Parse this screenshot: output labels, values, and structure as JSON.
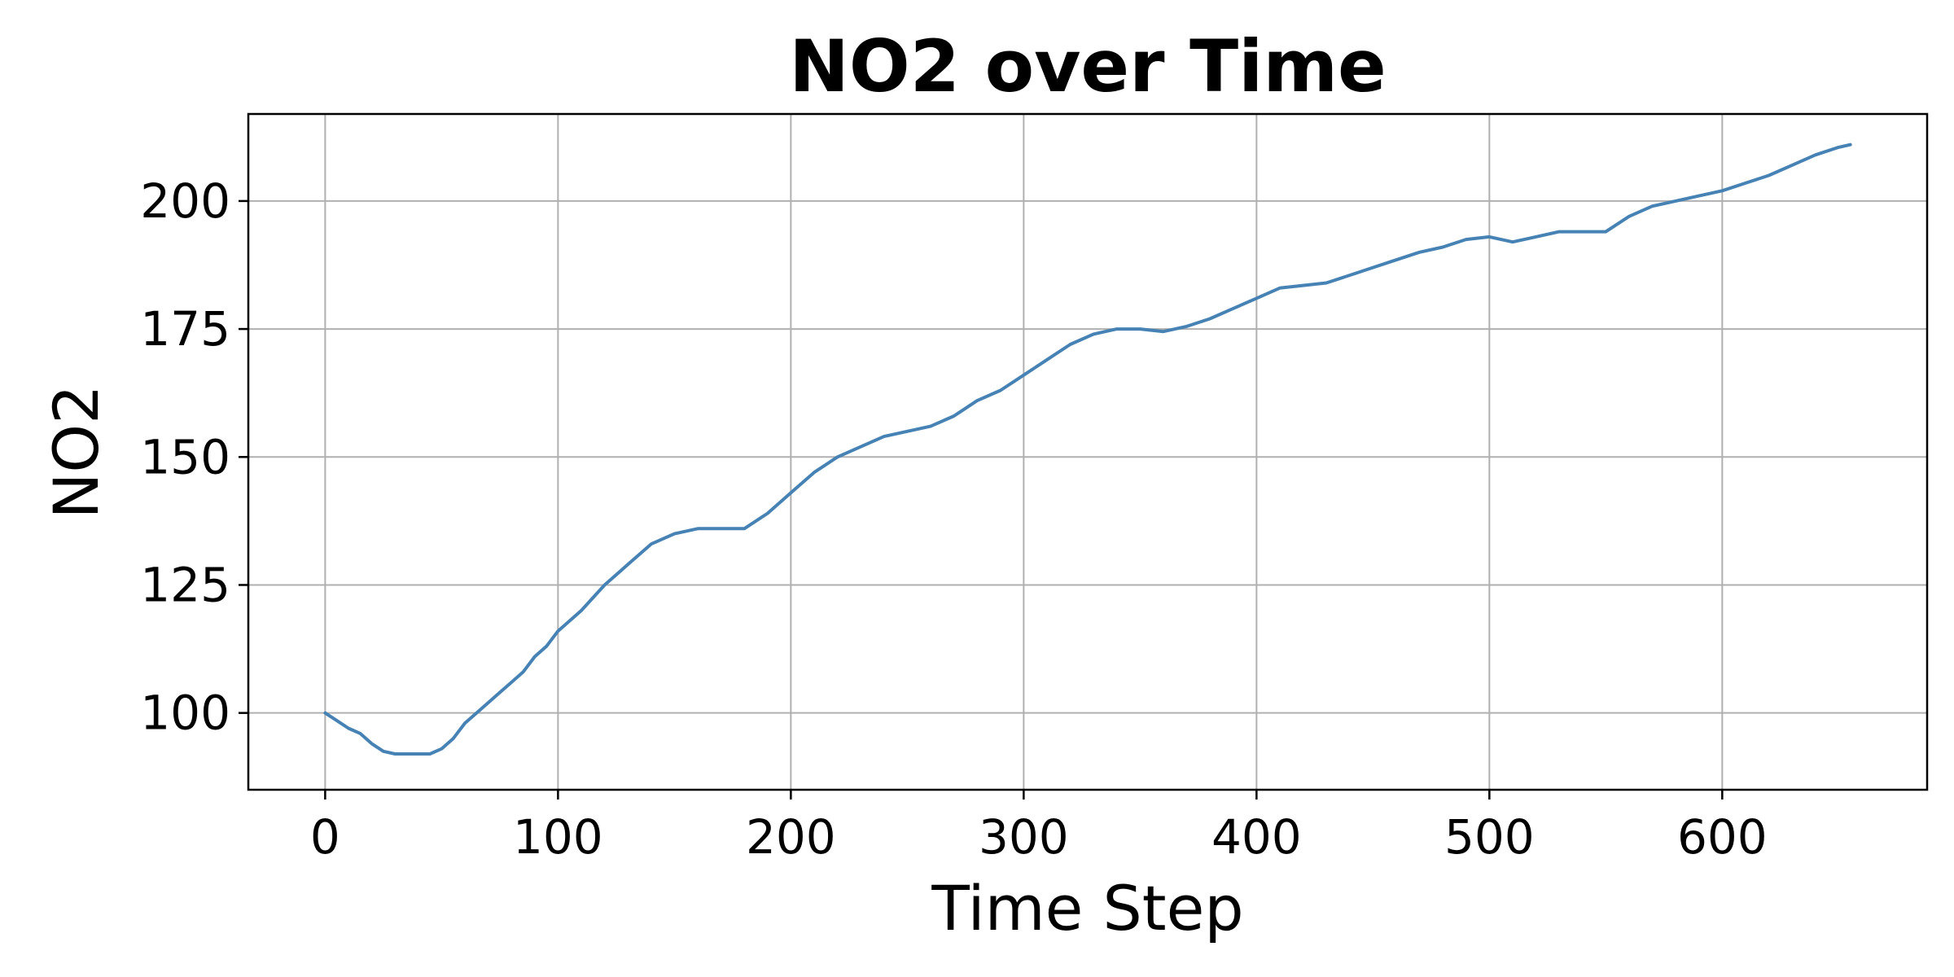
{
  "chart_data": {
    "type": "line",
    "title": "NO2 over Time",
    "xlabel": "Time Step",
    "ylabel": "NO2",
    "xlim": [
      -33,
      688
    ],
    "ylim": [
      85,
      217
    ],
    "xticks": [
      0,
      100,
      200,
      300,
      400,
      500,
      600
    ],
    "yticks": [
      100,
      125,
      150,
      175,
      200
    ],
    "grid": true,
    "series": [
      {
        "color": "#4682b4",
        "x": [
          0,
          5,
          10,
          15,
          20,
          25,
          30,
          35,
          40,
          45,
          50,
          55,
          60,
          65,
          70,
          75,
          80,
          85,
          90,
          95,
          100,
          110,
          120,
          130,
          140,
          150,
          160,
          170,
          180,
          190,
          200,
          210,
          220,
          230,
          240,
          250,
          260,
          270,
          280,
          290,
          300,
          310,
          320,
          330,
          340,
          350,
          360,
          370,
          380,
          390,
          400,
          410,
          420,
          430,
          440,
          450,
          460,
          470,
          480,
          490,
          500,
          510,
          520,
          530,
          540,
          550,
          560,
          570,
          580,
          590,
          600,
          610,
          620,
          630,
          640,
          650,
          655
        ],
        "y": [
          100,
          98.5,
          97,
          96,
          94,
          92.5,
          92,
          92,
          92,
          92,
          93,
          95,
          98,
          100,
          102,
          104,
          106,
          108,
          111,
          113,
          116,
          120,
          125,
          129,
          133,
          135,
          136,
          136,
          136,
          139,
          143,
          147,
          150,
          152,
          154,
          155,
          156,
          158,
          161,
          163,
          166,
          169,
          172,
          174,
          175,
          175,
          174.5,
          175.5,
          177,
          179,
          181,
          183,
          183.5,
          184,
          185.5,
          187,
          188.5,
          190,
          191,
          192.5,
          193,
          192,
          193,
          194,
          194,
          194,
          197,
          199,
          200,
          201,
          202,
          203.5,
          205,
          207,
          209,
          210.5,
          211
        ]
      }
    ]
  }
}
